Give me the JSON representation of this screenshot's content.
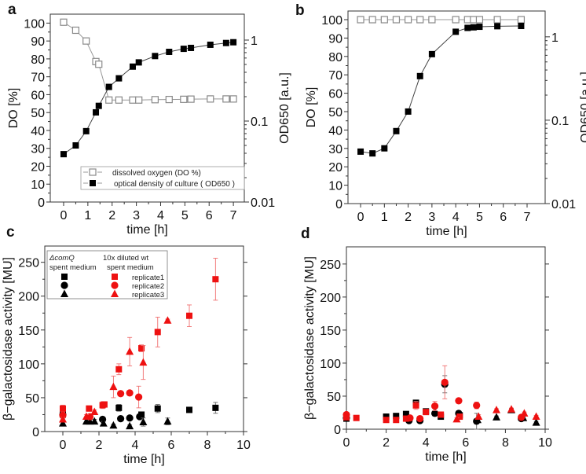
{
  "chart_data": [
    {
      "panel": "a",
      "type": "line",
      "xlabel": "time [h]",
      "ylabel": "DO [%]",
      "y2label": "OD650 [a.u.]",
      "xlim": [
        -0.55,
        7.45
      ],
      "ylim": [
        0,
        105
      ],
      "y2lim": [
        0.01,
        2.09
      ],
      "y2scale": "log",
      "xticks": [
        0,
        1,
        2,
        3,
        4,
        5,
        6,
        7
      ],
      "yticks": [
        0,
        10,
        20,
        30,
        40,
        50,
        60,
        70,
        80,
        90,
        100
      ],
      "y2ticks": [
        0.01,
        0.1,
        1
      ],
      "y2ticklabels": [
        "0.01",
        "0.1",
        "1"
      ],
      "legend_position": "bottom-right",
      "series": [
        {
          "name": "dissolved oxygen (DO %)",
          "axis": "left",
          "marker": "open-square",
          "color": "#8a8a8a",
          "x": [
            0,
            0.5,
            0.93,
            1.33,
            1.45,
            1.87,
            2.28,
            2.85,
            3.1,
            3.77,
            4.35,
            4.95,
            5.25,
            6.05,
            6.7,
            7
          ],
          "y": [
            100.5,
            96,
            90,
            78.5,
            77,
            57,
            57,
            57,
            57,
            57.2,
            57.3,
            57.4,
            57.5,
            57.6,
            57.6,
            57.6
          ]
        },
        {
          "name": "optical density of culture ( OD650 )",
          "axis": "right",
          "marker": "square",
          "color": "#000000",
          "x": [
            0,
            0.5,
            0.93,
            1.33,
            1.45,
            1.87,
            2.28,
            2.85,
            3.1,
            3.77,
            4.35,
            4.95,
            5.25,
            6.05,
            6.7,
            7
          ],
          "y": [
            0.039,
            0.05,
            0.075,
            0.128,
            0.154,
            0.264,
            0.337,
            0.47,
            0.53,
            0.635,
            0.715,
            0.78,
            0.8,
            0.875,
            0.92,
            0.94
          ]
        }
      ]
    },
    {
      "panel": "b",
      "type": "line",
      "xlabel": "time [h]",
      "ylabel": "DO [%]",
      "y2label": "OD650 [a.u.]",
      "xlim": [
        -0.53,
        7.76
      ],
      "ylim": [
        0,
        104.7
      ],
      "y2lim": [
        0.01,
        2.04
      ],
      "y2scale": "log",
      "xticks": [
        0,
        1,
        2,
        3,
        4,
        5,
        6,
        7
      ],
      "yticks": [
        0,
        10,
        20,
        30,
        40,
        50,
        60,
        70,
        80,
        90,
        100
      ],
      "y2ticks": [
        0.01,
        0.1,
        1
      ],
      "y2ticklabels": [
        "0.01",
        "0.1",
        "1"
      ],
      "series": [
        {
          "name": "dissolved oxygen (DO %)",
          "axis": "left",
          "marker": "open-square",
          "color": "#8a8a8a",
          "x": [
            0,
            0.5,
            1,
            1.5,
            2,
            2.5,
            3,
            4,
            4.5,
            4.75,
            5,
            5.75,
            6.75
          ],
          "y": [
            100,
            100,
            100,
            100,
            100,
            100,
            100,
            100,
            100,
            100,
            100,
            100,
            100
          ]
        },
        {
          "name": "optical density of culture ( OD650 )",
          "axis": "right",
          "marker": "square",
          "color": "#000000",
          "x": [
            0,
            0.5,
            1,
            1.5,
            2,
            2.5,
            3,
            4,
            4.5,
            4.75,
            5,
            5.75,
            6.75
          ],
          "y": [
            0.042,
            0.04,
            0.046,
            0.074,
            0.127,
            0.338,
            0.62,
            1.15,
            1.28,
            1.3,
            1.32,
            1.34,
            1.35
          ]
        }
      ]
    },
    {
      "panel": "c",
      "type": "scatter",
      "xlabel": "time [h]",
      "ylabel": "β−galactosidase activity [MU]",
      "xlim": [
        -1,
        10
      ],
      "ylim": [
        0,
        274
      ],
      "xticks": [
        0,
        2,
        4,
        6,
        8,
        10
      ],
      "yticks": [
        0,
        50,
        100,
        150,
        200,
        250
      ],
      "legend_position": "top-left",
      "legend": {
        "group1_title": "ΔcomQ",
        "group1_subtitle": "spent medium",
        "group2_title": "10x diluted wt",
        "group2_subtitle": "spent medium",
        "rows": [
          "replicate1",
          "replicate2",
          "replicate3"
        ]
      },
      "series": [
        {
          "name": "ΔcomQ replicate1",
          "marker": "square",
          "color": "#000000",
          "x": [
            0,
            3.1,
            4.35,
            5.25,
            7,
            8.45
          ],
          "y": [
            25,
            35,
            25,
            34,
            32,
            35
          ],
          "err": [
            10,
            5,
            3,
            6,
            3,
            8
          ]
        },
        {
          "name": "ΔcomQ replicate2",
          "marker": "circle",
          "color": "#000000",
          "x": [
            0,
            2.2,
            3.2,
            3.7,
            4.25
          ],
          "y": [
            25,
            18,
            19,
            20,
            22
          ],
          "err": [
            5,
            3,
            2,
            3,
            3
          ]
        },
        {
          "name": "ΔcomQ replicate3",
          "marker": "triangle",
          "color": "#000000",
          "x": [
            0,
            1.3,
            1.5,
            1.75,
            2.25,
            2.8,
            3.7,
            4.45,
            5.8
          ],
          "y": [
            12,
            15,
            15,
            15,
            12,
            9,
            8,
            14,
            15
          ],
          "err": [
            3,
            4,
            3,
            3,
            3,
            2,
            2,
            6,
            5
          ]
        },
        {
          "name": "10x diluted wt replicate1",
          "marker": "square",
          "color": "#ee1111",
          "x": [
            0,
            1.45,
            2.2,
            2.3,
            3.1,
            4.35,
            5.25,
            7,
            8.45
          ],
          "y": [
            34,
            34,
            39,
            40,
            92,
            123,
            147,
            171,
            225
          ],
          "err": [
            5,
            4,
            5,
            4,
            8,
            5,
            22,
            16,
            31
          ]
        },
        {
          "name": "10x diluted wt replicate2",
          "marker": "circle",
          "color": "#ee1111",
          "x": [
            0,
            1.5,
            3.2,
            3.7,
            4.2
          ],
          "y": [
            24,
            22,
            56,
            57,
            51
          ],
          "err": [
            4,
            3,
            3,
            3,
            16
          ]
        },
        {
          "name": "10x diluted wt replicate3",
          "marker": "triangle",
          "color": "#ee1111",
          "x": [
            0,
            1.3,
            1.75,
            2.8,
            3.7,
            4.45,
            5.8
          ],
          "y": [
            18,
            22,
            29,
            66,
            118,
            102,
            164
          ],
          "err": [
            3,
            3,
            3,
            16,
            21,
            25,
            2
          ]
        }
      ]
    },
    {
      "panel": "d",
      "type": "scatter",
      "xlabel": "time [h]",
      "ylabel": "β−galactosidase activity [MU]",
      "xlim": [
        0,
        10
      ],
      "ylim": [
        0,
        276
      ],
      "xticks": [
        0,
        2,
        4,
        6,
        8,
        10
      ],
      "yticks": [
        0,
        50,
        100,
        150,
        200,
        250
      ],
      "series": [
        {
          "name": "ΔcomQ replicate1",
          "marker": "square",
          "color": "#000000",
          "x": [
            0,
            2,
            2.5,
            3,
            3.5,
            4,
            4.75,
            5.7
          ],
          "y": [
            16,
            19,
            20,
            23,
            40,
            27,
            19,
            21
          ],
          "err": [
            2,
            2,
            2,
            3,
            3,
            2,
            2,
            3
          ]
        },
        {
          "name": "ΔcomQ replicate2",
          "marker": "circle",
          "color": "#000000",
          "x": [
            0,
            3.15,
            3.7,
            4.45,
            4.95,
            5.65,
            6.55,
            8.8
          ],
          "y": [
            17,
            13,
            13,
            24,
            68,
            24,
            12,
            16
          ],
          "err": [
            2,
            2,
            2,
            3,
            13,
            4,
            12,
            3
          ]
        },
        {
          "name": "ΔcomQ replicate3",
          "marker": "triangle",
          "color": "#000000",
          "x": [
            6.6,
            7.55,
            8.3,
            8.9,
            9.55
          ],
          "y": [
            14,
            18,
            29,
            17,
            10
          ],
          "err": [
            3,
            2,
            2,
            2,
            2
          ]
        },
        {
          "name": "10x diluted wt replicate1",
          "marker": "square",
          "color": "#ee1111",
          "x": [
            0,
            0.5,
            2,
            2.5,
            3,
            3.5,
            4,
            4.75,
            5.7
          ],
          "y": [
            18,
            17,
            14,
            14,
            16,
            36,
            26,
            22,
            19
          ],
          "err": [
            2,
            2,
            2,
            2,
            2,
            6,
            3,
            3,
            3
          ]
        },
        {
          "name": "10x diluted wt replicate2",
          "marker": "circle",
          "color": "#ee1111",
          "x": [
            0,
            3.2,
            3.7,
            4.45,
            4.95,
            5.65,
            6.55,
            8.8
          ],
          "y": [
            22,
            17,
            16,
            35,
            71,
            43,
            36,
            18
          ],
          "err": [
            3,
            2,
            2,
            7,
            25,
            3,
            5,
            3
          ]
        },
        {
          "name": "10x diluted wt replicate3",
          "marker": "triangle",
          "color": "#ee1111",
          "x": [
            5.55,
            6.65,
            7.55,
            8.3,
            8.95,
            9.55
          ],
          "y": [
            15,
            19,
            29,
            30,
            24,
            19
          ],
          "err": [
            2,
            3,
            2,
            2,
            2,
            2
          ]
        }
      ]
    }
  ]
}
